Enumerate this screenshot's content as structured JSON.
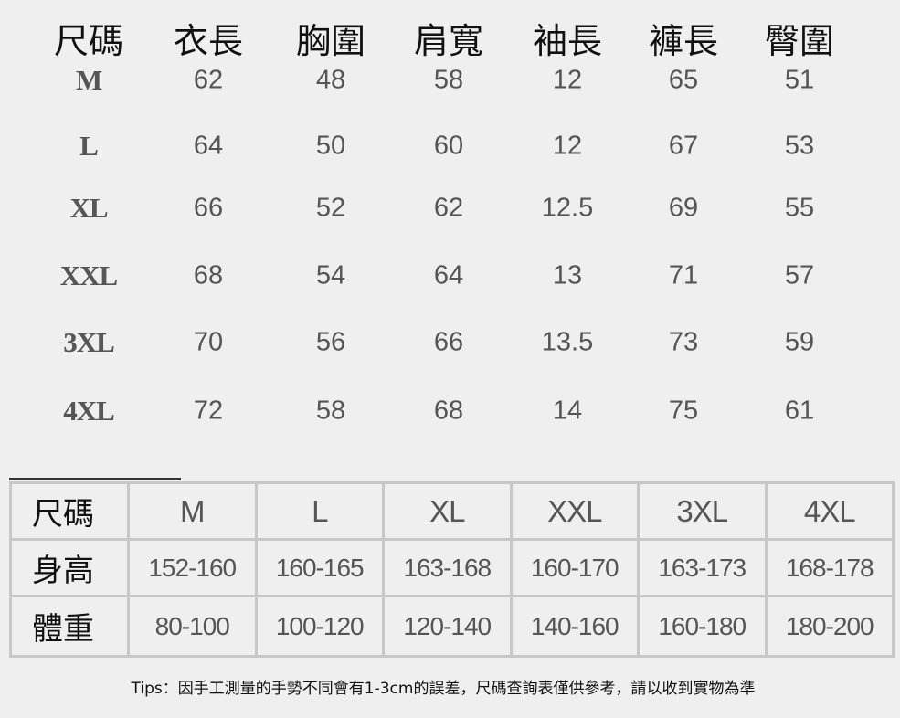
{
  "top_table": {
    "headers": [
      "尺碼",
      "衣長",
      "胸圍",
      "肩寬",
      "袖長",
      "褲長",
      "臀圍"
    ],
    "rows": [
      {
        "size": "M",
        "values": [
          "62",
          "48",
          "58",
          "12",
          "65",
          "51"
        ]
      },
      {
        "size": "L",
        "values": [
          "64",
          "50",
          "60",
          "12",
          "67",
          "53"
        ]
      },
      {
        "size": "XL",
        "values": [
          "66",
          "52",
          "62",
          "12.5",
          "69",
          "55"
        ]
      },
      {
        "size": "XXL",
        "values": [
          "68",
          "54",
          "64",
          "13",
          "71",
          "57"
        ]
      },
      {
        "size": "3XL",
        "values": [
          "70",
          "56",
          "66",
          "13.5",
          "73",
          "59"
        ]
      },
      {
        "size": "4XL",
        "values": [
          "72",
          "58",
          "68",
          "14",
          "75",
          "61"
        ]
      }
    ]
  },
  "bottom_table": {
    "size_label": "尺碼",
    "sizes": [
      "M",
      "L",
      "XL",
      "XXL",
      "3XL",
      "4XL"
    ],
    "height_label": "身高",
    "heights": [
      "152-160",
      "160-165",
      "163-168",
      "160-170",
      "163-173",
      "168-178"
    ],
    "weight_label": "體重",
    "weights": [
      "80-100",
      "100-120",
      "120-140",
      "140-160",
      "160-180",
      "180-200"
    ]
  },
  "tips": "Tips：因手工測量的手勢不同會有1-3cm的誤差，尺碼查詢表僅供參考，請以收到實物為準"
}
